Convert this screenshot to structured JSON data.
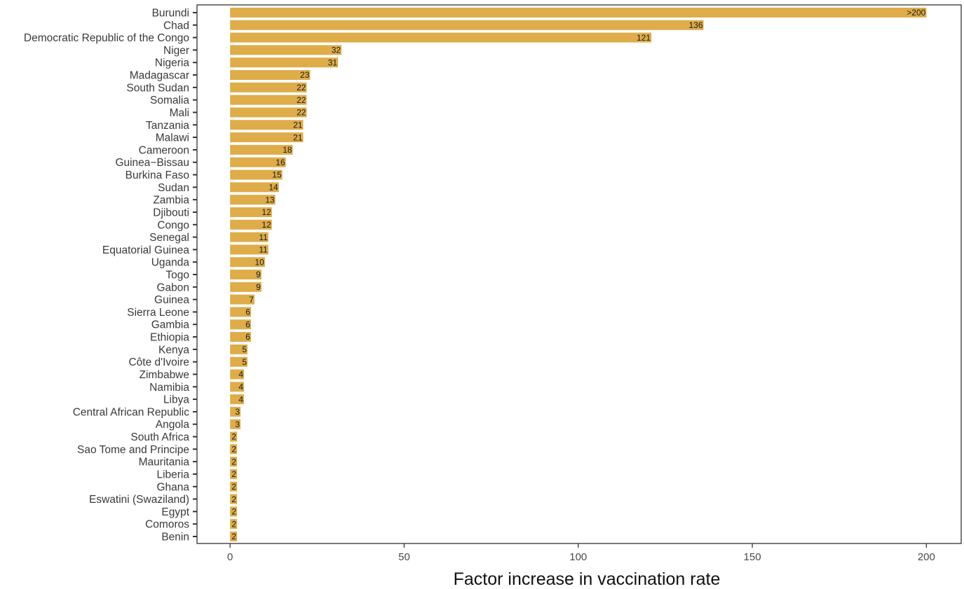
{
  "chart_data": {
    "type": "bar",
    "orientation": "horizontal",
    "title": "",
    "xlabel": "Factor increase in vaccination rate",
    "ylabel": "",
    "xlim": [
      -9.5,
      210
    ],
    "xticks": [
      0,
      50,
      100,
      150,
      200
    ],
    "grid": false,
    "legend": "none",
    "bar_color": "#DEAC49",
    "categories": [
      "Burundi",
      "Chad",
      "Democratic Republic of the Congo",
      "Niger",
      "Nigeria",
      "Madagascar",
      "South Sudan",
      "Somalia",
      "Mali",
      "Tanzania",
      "Malawi",
      "Cameroon",
      "Guinea−Bissau",
      "Burkina Faso",
      "Sudan",
      "Zambia",
      "Djibouti",
      "Congo",
      "Senegal",
      "Equatorial Guinea",
      "Uganda",
      "Togo",
      "Gabon",
      "Guinea",
      "Sierra Leone",
      "Gambia",
      "Ethiopia",
      "Kenya",
      "Côte d'Ivoire",
      "Zimbabwe",
      "Namibia",
      "Libya",
      "Central African Republic",
      "Angola",
      "South Africa",
      "Sao Tome and Principe",
      "Mauritania",
      "Liberia",
      "Ghana",
      "Eswatini (Swaziland)",
      "Egypt",
      "Comoros",
      "Benin"
    ],
    "values": [
      200,
      136,
      121,
      32,
      31,
      23,
      22,
      22,
      22,
      21,
      21,
      18,
      16,
      15,
      14,
      13,
      12,
      12,
      11,
      11,
      10,
      9,
      9,
      7,
      6,
      6,
      6,
      5,
      5,
      4,
      4,
      4,
      3,
      3,
      2,
      2,
      2,
      2,
      2,
      2,
      2,
      2,
      2
    ],
    "data_labels": [
      ">200",
      "136",
      "121",
      "32",
      "31",
      "23",
      "22",
      "22",
      "22",
      "21",
      "21",
      "18",
      "16",
      "15",
      "14",
      "13",
      "12",
      "12",
      "11",
      "11",
      "10",
      "9",
      "9",
      "7",
      "6",
      "6",
      "6",
      "5",
      "5",
      "4",
      "4",
      "4",
      "3",
      "3",
      "2",
      "2",
      "2",
      "2",
      "2",
      "2",
      "2",
      "2",
      "2"
    ]
  }
}
